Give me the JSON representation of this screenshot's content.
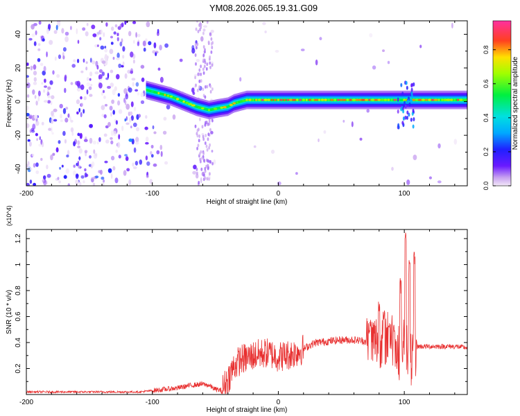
{
  "title": "YM08.2026.065.19.31.G09",
  "chart_data": [
    {
      "type": "heatmap",
      "name": "spectrogram",
      "xlabel": "Height of straight line (km)",
      "ylabel": "Frequency (Hz)",
      "xlim": [
        -200,
        150
      ],
      "ylim": [
        -50,
        48
      ],
      "xticks": [
        -200,
        -100,
        0,
        100
      ],
      "yticks": [
        -40,
        -20,
        0,
        20,
        40
      ],
      "colorbar": {
        "label": "Normalized spectral amplitude",
        "range": [
          0,
          0.97
        ],
        "ticks": [
          0.0,
          0.2,
          0.4,
          0.6,
          0.8
        ]
      },
      "features": {
        "noise_region_km": [
          -200,
          -60
        ],
        "main_band": [
          {
            "x": -105,
            "freq": 7
          },
          {
            "x": -95,
            "freq": 5
          },
          {
            "x": -85,
            "freq": 3
          },
          {
            "x": -75,
            "freq": 0
          },
          {
            "x": -65,
            "freq": -3
          },
          {
            "x": -55,
            "freq": -5
          },
          {
            "x": -48,
            "freq": -4
          },
          {
            "x": -40,
            "freq": -3
          },
          {
            "x": -35,
            "freq": -1
          },
          {
            "x": -25,
            "freq": 1
          },
          {
            "x": -15,
            "freq": 1
          },
          {
            "x": 0,
            "freq": 1
          },
          {
            "x": 25,
            "freq": 1
          },
          {
            "x": 50,
            "freq": 1
          },
          {
            "x": 75,
            "freq": 1
          },
          {
            "x": 90,
            "freq": 1
          },
          {
            "x": 100,
            "freq": 1
          },
          {
            "x": 125,
            "freq": 1
          },
          {
            "x": 150,
            "freq": 1
          }
        ],
        "disturbance_km": [
          95,
          108
        ]
      }
    },
    {
      "type": "line",
      "name": "snr",
      "xlabel": "Height of straight line (km)",
      "ylabel": "SNR (10 * v/v)",
      "y_multiplier": "(x10^4)",
      "xlim": [
        -200,
        150
      ],
      "ylim": [
        0,
        1.27
      ],
      "xticks": [
        -200,
        -100,
        0,
        100
      ],
      "yticks": [
        0.2,
        0.4,
        0.6,
        0.8,
        1.0,
        1.2
      ],
      "color": "#e83030",
      "series": [
        {
          "name": "SNR",
          "x": [
            -200,
            -150,
            -110,
            -100,
            -90,
            -80,
            -70,
            -60,
            -55,
            -50,
            -45,
            -40,
            -35,
            -30,
            -25,
            -20,
            -15,
            -10,
            -5,
            0,
            5,
            10,
            15,
            20,
            25,
            30,
            40,
            50,
            60,
            70,
            75,
            80,
            85,
            90,
            95,
            100,
            105,
            110,
            120,
            130,
            140,
            150
          ],
          "y": [
            0.02,
            0.02,
            0.02,
            0.03,
            0.04,
            0.05,
            0.07,
            0.08,
            0.07,
            0.04,
            0.03,
            0.12,
            0.22,
            0.27,
            0.28,
            0.3,
            0.31,
            0.32,
            0.31,
            0.29,
            0.3,
            0.31,
            0.33,
            0.35,
            0.38,
            0.4,
            0.41,
            0.42,
            0.42,
            0.41,
            0.41,
            0.42,
            0.43,
            0.44,
            0.3,
            0.45,
            0.25,
            0.37,
            0.37,
            0.37,
            0.37,
            0.36
          ],
          "spikes": [
            {
              "x": 73,
              "y": 0.55
            },
            {
              "x": 80,
              "y": 0.75
            },
            {
              "x": 84,
              "y": 0.65
            },
            {
              "x": 88,
              "y": 0.58
            },
            {
              "x": 92,
              "y": 0.55
            },
            {
              "x": 97,
              "y": 0.9
            },
            {
              "x": 101,
              "y": 1.27
            },
            {
              "x": 104,
              "y": 1.05
            },
            {
              "x": 108,
              "y": 1.15
            }
          ]
        }
      ]
    }
  ]
}
